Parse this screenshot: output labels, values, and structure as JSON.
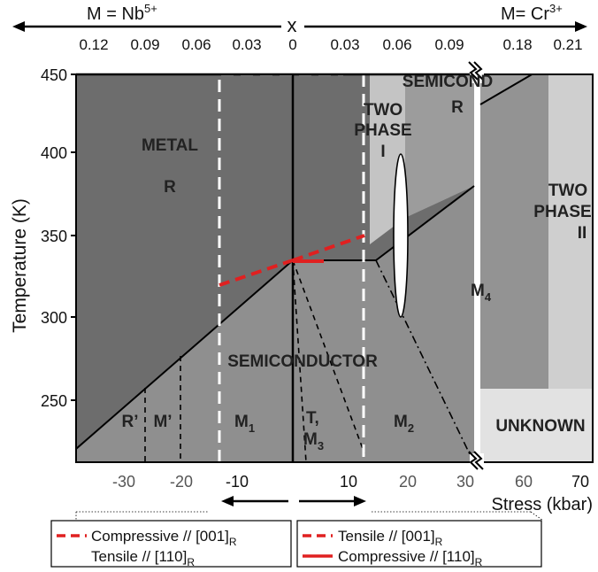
{
  "top_axis": {
    "left_label_pre": "M = Nb",
    "left_label_sup": "5+",
    "center_label": "x",
    "right_label_pre": "M= Cr",
    "right_label_sup": "3+",
    "ticks": [
      "0.12",
      "0.09",
      "0.06",
      "0.03",
      "0",
      "0.03",
      "0.06",
      "0.09",
      "0.18",
      "0.21"
    ]
  },
  "y_axis": {
    "label": "Temperature (K)",
    "ticks": [
      "450",
      "400",
      "350",
      "300",
      "250"
    ]
  },
  "bottom_axis": {
    "label": "Stress (kbar)",
    "ticks_gray": [
      "-30",
      "-20"
    ],
    "ticks_dark": [
      "-10",
      "10",
      "20",
      "30"
    ],
    "ticks_right_gray": [
      "60"
    ],
    "ticks_right_dark": [
      "70"
    ]
  },
  "regions": {
    "metal": "METAL",
    "metal_r": "R",
    "two_phase_1_a": "TWO",
    "two_phase_1_b": "PHASE",
    "two_phase_1_c": "I",
    "semicond": "SEMICOND",
    "semicond_r": "R",
    "two_phase_2_a": "TWO",
    "two_phase_2_b": "PHASE",
    "two_phase_2_c": "II",
    "m4": "M",
    "m4_sub": "4",
    "semiconductor": "SEMICONDUCTOR",
    "r_prime": "R’",
    "m_prime": "M’",
    "m1": "M",
    "m1_sub": "1",
    "t": "T,",
    "m3": "M",
    "m3_sub": "3",
    "m2": "M",
    "m2_sub": "2",
    "unknown": "UNKNOWN"
  },
  "legend": {
    "left_line1": "Compressive // [001]",
    "left_line1_sub": "R",
    "left_line2": "Tensile // [110]",
    "left_line2_sub": "R",
    "right_line1": "Tensile // [001]",
    "right_line1_sub": "R",
    "right_line2": "Compressive // [110]",
    "right_line2_sub": "R"
  },
  "colors": {
    "metal": "#6d6d6d",
    "semiconductor": "#8f8f8f",
    "semicond_r": "#9c9c9c",
    "two_phase": "#c6c6c6",
    "m4": "#939393",
    "unknown": "#e2e2e2",
    "red": "#e02020"
  }
}
